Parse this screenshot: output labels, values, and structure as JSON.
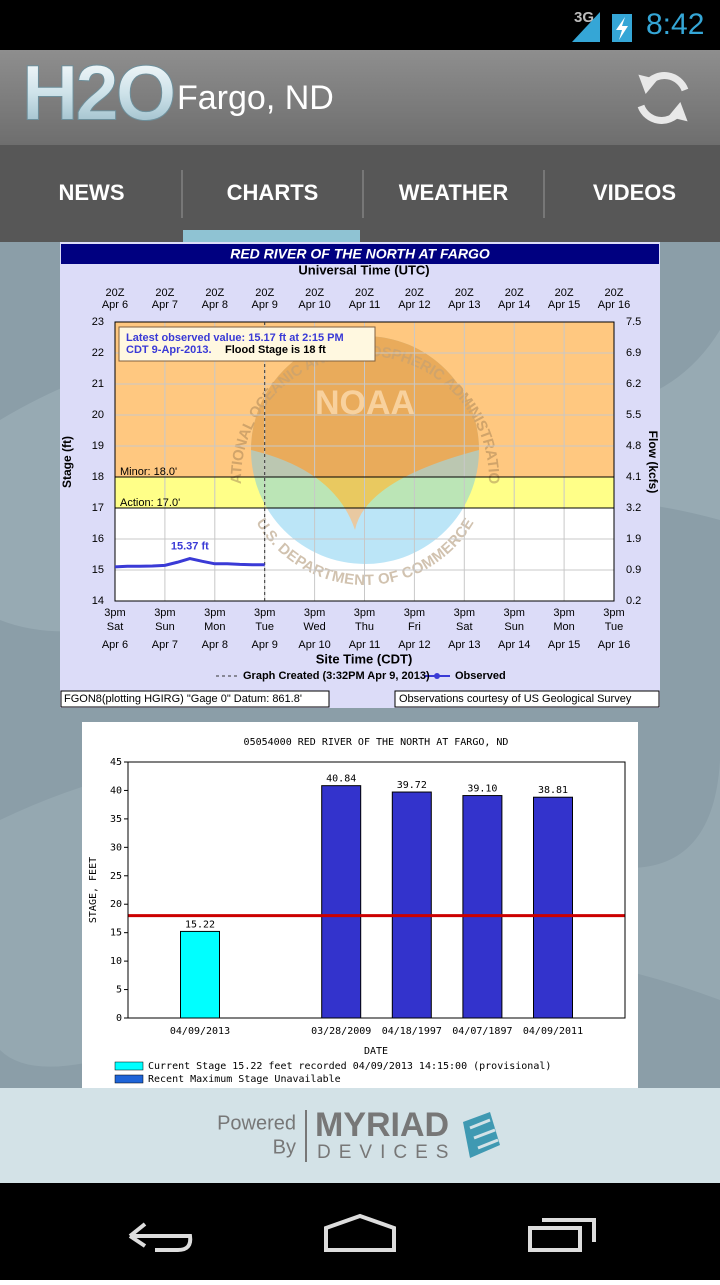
{
  "status_bar": {
    "network": "3G",
    "time": "8:42"
  },
  "app_bar": {
    "logo": "H2O",
    "location": "Fargo, ND"
  },
  "tabs": [
    {
      "label": "NEWS",
      "selected": false
    },
    {
      "label": "CHARTS",
      "selected": true
    },
    {
      "label": "WEATHER",
      "selected": false
    },
    {
      "label": "VIDEOS",
      "selected": false
    }
  ],
  "chart_data": [
    {
      "type": "line",
      "title": "RED RIVER OF THE NORTH AT FARGO",
      "top_axis_label": "Universal Time (UTC)",
      "top_tick_label": "20Z",
      "xlabel": "Site Time (CDT)",
      "xtick_label": "3pm",
      "xtick_days": [
        "Sat",
        "Sun",
        "Mon",
        "Tue",
        "Wed",
        "Thu",
        "Fri",
        "Sat",
        "Sun",
        "Mon",
        "Tue"
      ],
      "xtick_dates": [
        "Apr 6",
        "Apr 7",
        "Apr 8",
        "Apr 9",
        "Apr 10",
        "Apr 11",
        "Apr 12",
        "Apr 13",
        "Apr 14",
        "Apr 15",
        "Apr 16"
      ],
      "xlim": [
        0,
        10
      ],
      "xticks": [
        0,
        1,
        2,
        3,
        4,
        5,
        6,
        7,
        8,
        9,
        10
      ],
      "ylabel": "Stage (ft)",
      "ylim": [
        14,
        23
      ],
      "yticks": [
        14,
        15,
        16,
        17,
        18,
        19,
        20,
        21,
        22,
        23
      ],
      "y2label": "Flow (kcfs)",
      "y2ticks": [
        0.2,
        0.9,
        1.9,
        3.2,
        4.1,
        4.8,
        5.5,
        6.2,
        6.9,
        7.5
      ],
      "grid": true,
      "bands": [
        {
          "from": 17,
          "to": 18,
          "color": "#ffff88",
          "label": "Action: 17.0'"
        },
        {
          "from": 18,
          "to": 23,
          "color": "#ffc880",
          "label": "Minor: 18.0'"
        }
      ],
      "x": [
        0,
        0.25,
        0.5,
        0.75,
        1,
        1.25,
        1.5,
        1.75,
        2,
        2.25,
        2.5,
        2.75,
        3
      ],
      "series": [
        {
          "name": "Observed",
          "color": "#3a3ad6",
          "values": [
            15.1,
            15.12,
            15.12,
            15.13,
            15.15,
            15.25,
            15.37,
            15.28,
            15.2,
            15.2,
            15.18,
            15.17,
            15.17
          ],
          "value_labels": [
            null,
            null,
            null,
            null,
            null,
            null,
            "15.37 ft",
            null,
            null,
            null,
            null,
            null,
            null
          ]
        }
      ],
      "annotation": {
        "line1": "Latest observed value: 15.17 ft at 2:15 PM",
        "line2a": "CDT 9-Apr-2013.",
        "line2b": "Flood Stage is 18 ft"
      },
      "legend_note": "Graph Created (3:32PM Apr 9, 2013)",
      "footer_left": "FGON8(plotting HGIRG) \"Gage 0\" Datum: 861.8'",
      "footer_right": "Observations courtesy of US Geological Survey",
      "watermark": {
        "ring_top": "NATIONAL OCEANIC AND ATMOSPHERIC ADMINISTRATION",
        "center": "NOAA",
        "ring_bottom": "U.S. DEPARTMENT OF COMMERCE"
      }
    },
    {
      "type": "bar",
      "title": "05054000 RED RIVER OF THE NORTH AT FARGO, ND",
      "xlabel": "DATE",
      "ylabel": "STAGE, FEET",
      "categories": [
        "04/09/2013",
        null,
        "03/28/2009",
        "04/18/1997",
        "04/07/1897",
        "04/09/2011"
      ],
      "values": [
        15.22,
        null,
        40.84,
        39.72,
        39.1,
        38.81
      ],
      "value_labels": [
        "15.22",
        null,
        "40.84",
        "39.72",
        "39.10",
        "38.81"
      ],
      "colors": [
        "#00ffff",
        null,
        "#3333cc",
        "#3333cc",
        "#3333cc",
        "#3333cc"
      ],
      "ylim": [
        0,
        45
      ],
      "yticks": [
        0,
        5,
        10,
        15,
        20,
        25,
        30,
        35,
        40,
        45
      ],
      "flood_stage": 18,
      "flood_color": "#cc0000",
      "legend": [
        {
          "name": "Current Stage 15.22 feet recorded 04/09/2013 14:15:00 (provisional)",
          "color": "#00ffff"
        },
        {
          "name": "Recent Maximum Stage Unavailable",
          "color": "#1e64d8"
        }
      ]
    }
  ],
  "footer": {
    "powered": "Powered",
    "by": "By",
    "brand": "MYRIAD",
    "brand_sub": "DEVICES"
  }
}
